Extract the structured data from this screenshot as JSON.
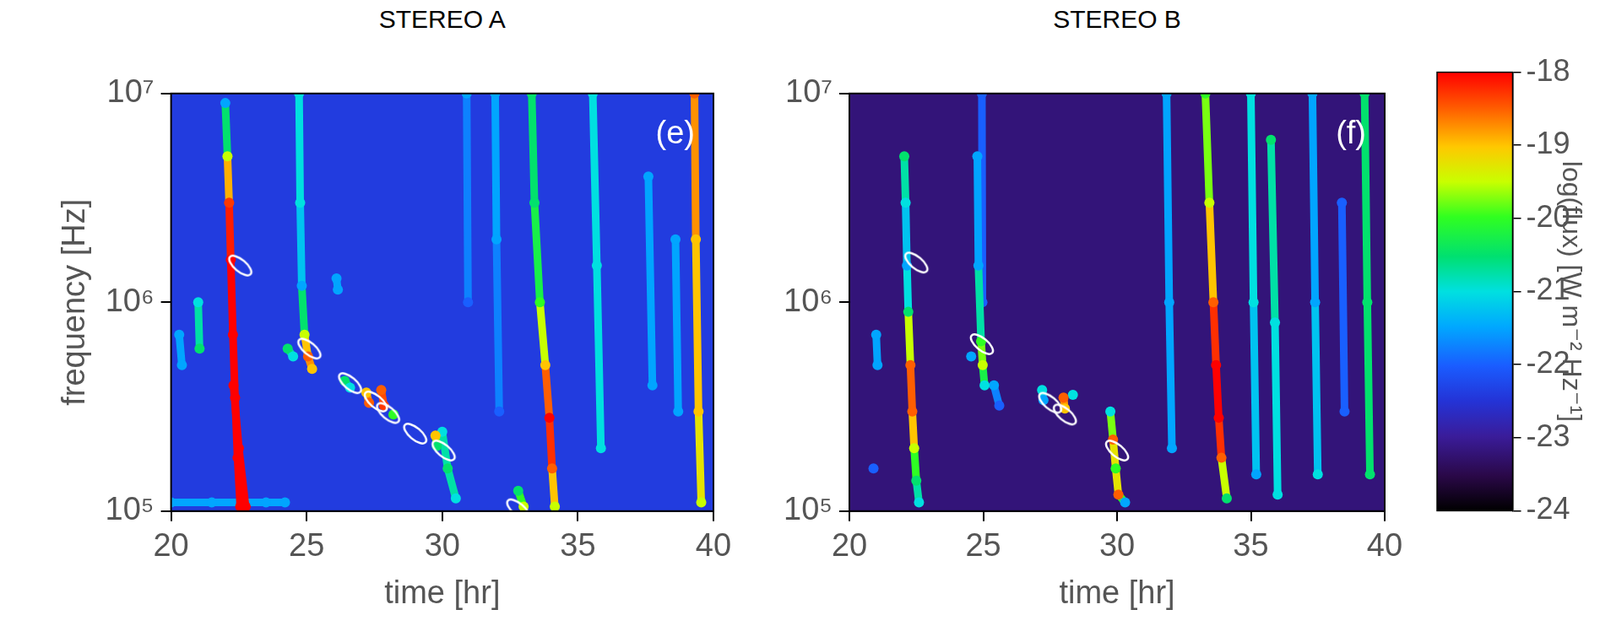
{
  "chart_data": [
    {
      "type": "heatmap",
      "title": "STEREO A",
      "panel_label": "(e)",
      "x_label": "time [hr]",
      "y_label": "frequency [Hz]",
      "xlim": [
        20,
        40
      ],
      "xticks": [
        20,
        25,
        30,
        35,
        40
      ],
      "ylim": [
        100000,
        10000000
      ],
      "yticks": [
        {
          "value": 100000,
          "label": "10⁵"
        },
        {
          "value": 1000000,
          "label": "10⁶"
        },
        {
          "value": 10000000,
          "label": "10⁷"
        }
      ],
      "log": "y",
      "grid": false,
      "background": -22.4,
      "bursts": [
        [
          [
            22.0,
            9000000.0,
            -21.5
          ],
          [
            22.08,
            5000000.0,
            -19.5
          ],
          [
            22.14,
            3000000.0,
            -18.3
          ],
          [
            22.2,
            1600000.0,
            -18
          ],
          [
            22.28,
            700000.0,
            -18
          ],
          [
            22.36,
            350000.0,
            -18
          ],
          [
            22.45,
            180000.0,
            -18
          ],
          [
            22.55,
            105000.0,
            -18
          ]
        ],
        [
          [
            22.3,
            400000.0,
            -18
          ],
          [
            22.5,
            200000.0,
            -18
          ],
          [
            22.75,
            105000.0,
            -18
          ]
        ],
        [
          [
            20.0,
            110000.0,
            -21.5
          ],
          [
            21.5,
            110000.0,
            -21.5
          ],
          [
            23.5,
            110000.0,
            -21.5
          ],
          [
            24.2,
            110000.0,
            -21.5
          ]
        ],
        [
          [
            24.72,
            10000000.0,
            -21
          ],
          [
            24.76,
            3000000.0,
            -21
          ],
          [
            24.82,
            1200000.0,
            -21.5
          ],
          [
            24.92,
            700000.0,
            -19.5
          ],
          [
            25.05,
            550000.0,
            -18.5
          ],
          [
            25.2,
            480000.0,
            -19
          ]
        ],
        [
          [
            24.3,
            600000.0,
            -20.5
          ],
          [
            24.5,
            550000.0,
            -21
          ]
        ],
        [
          [
            26.4,
            420000.0,
            -20.5
          ],
          [
            26.6,
            390000.0,
            -21
          ]
        ],
        [
          [
            27.2,
            370000.0,
            -19
          ],
          [
            27.3,
            330000.0,
            -18.5
          ]
        ],
        [
          [
            27.75,
            380000.0,
            -18.5
          ],
          [
            27.85,
            320000.0,
            -18.3
          ]
        ],
        [
          [
            28.2,
            290000.0,
            -20
          ]
        ],
        [
          [
            29.75,
            230000.0,
            -19
          ],
          [
            29.8,
            205000.0,
            -20.5
          ]
        ],
        [
          [
            30.0,
            240000.0,
            -21
          ],
          [
            30.2,
            160000.0,
            -20.5
          ],
          [
            30.5,
            115000.0,
            -21
          ]
        ],
        [
          [
            26.1,
            1300000.0,
            -21.5
          ],
          [
            26.15,
            1150000.0,
            -21.5
          ]
        ],
        [
          [
            32.8,
            125000.0,
            -20.5
          ],
          [
            33.0,
            105000.0,
            -19.5
          ]
        ],
        [
          [
            33.3,
            10000000.0,
            -20.5
          ],
          [
            33.4,
            3000000.0,
            -20.5
          ],
          [
            33.6,
            1000000.0,
            -20
          ],
          [
            33.8,
            500000.0,
            -19
          ],
          [
            33.95,
            280000.0,
            -18
          ],
          [
            34.05,
            160000.0,
            -18.5
          ],
          [
            34.15,
            105000.0,
            -19.5
          ]
        ],
        [
          [
            31.95,
            10000000.0,
            -21.5
          ],
          [
            32.0,
            2000000.0,
            -21.5
          ],
          [
            32.1,
            300000.0,
            -22
          ]
        ],
        [
          [
            30.9,
            10000000.0,
            -21.5
          ],
          [
            30.95,
            1000000.0,
            -22
          ]
        ],
        [
          [
            35.55,
            10000000.0,
            -21
          ],
          [
            35.7,
            1500000.0,
            -21
          ],
          [
            35.85,
            200000.0,
            -21
          ]
        ],
        [
          [
            37.6,
            4000000.0,
            -21.5
          ],
          [
            37.75,
            400000.0,
            -21.5
          ]
        ],
        [
          [
            38.6,
            2000000.0,
            -21.5
          ],
          [
            38.7,
            300000.0,
            -21.5
          ]
        ],
        [
          [
            39.3,
            10000000.0,
            -18.5
          ],
          [
            39.35,
            2000000.0,
            -19
          ],
          [
            39.45,
            300000.0,
            -19
          ],
          [
            39.55,
            110000.0,
            -19.5
          ]
        ],
        [
          [
            21.0,
            1000000.0,
            -21
          ],
          [
            21.05,
            600000.0,
            -20.5
          ]
        ],
        [
          [
            20.3,
            700000.0,
            -21.5
          ],
          [
            20.4,
            500000.0,
            -21.5
          ]
        ]
      ],
      "markers": {
        "marker": "ellipse",
        "color": "#ffffff",
        "points": [
          [
            22.55,
            1500000.0
          ],
          [
            25.1,
            600000.0
          ],
          [
            26.6,
            410000.0
          ],
          [
            27.55,
            335000.0
          ],
          [
            28.0,
            295000.0
          ],
          [
            29.0,
            235000.0
          ],
          [
            30.05,
            195000.0
          ],
          [
            32.8,
            102000.0
          ]
        ]
      }
    },
    {
      "type": "heatmap",
      "title": "STEREO B",
      "panel_label": "(f)",
      "x_label": "time [hr]",
      "xlim": [
        20,
        40
      ],
      "xticks": [
        20,
        25,
        30,
        35,
        40
      ],
      "ylim": [
        100000,
        10000000
      ],
      "yticks": [
        {
          "value": 100000,
          "label": "10⁵"
        },
        {
          "value": 1000000,
          "label": "10⁶"
        },
        {
          "value": 10000000,
          "label": "10⁷"
        }
      ],
      "log": "y",
      "grid": false,
      "background": -23.2,
      "bursts": [
        [
          [
            22.05,
            5000000.0,
            -20.5
          ],
          [
            22.1,
            3000000.0,
            -21
          ],
          [
            22.15,
            1500000.0,
            -21.5
          ],
          [
            22.2,
            900000.0,
            -20.5
          ],
          [
            22.28,
            500000.0,
            -18.5
          ],
          [
            22.35,
            300000.0,
            -18.5
          ],
          [
            22.42,
            200000.0,
            -19.5
          ],
          [
            22.5,
            140000.0,
            -20.5
          ],
          [
            22.6,
            110000.0,
            -21
          ]
        ],
        [
          [
            21.0,
            700000.0,
            -21.5
          ],
          [
            21.05,
            500000.0,
            -21.5
          ]
        ],
        [
          [
            20.9,
            160000.0,
            -22
          ]
        ],
        [
          [
            24.78,
            5000000.0,
            -21.5
          ],
          [
            24.82,
            1500000.0,
            -21.5
          ],
          [
            24.92,
            650000.0,
            -20
          ],
          [
            24.98,
            500000.0,
            -19.5
          ],
          [
            25.05,
            400000.0,
            -21
          ]
        ],
        [
          [
            24.55,
            550000.0,
            -21.5
          ]
        ],
        [
          [
            25.4,
            400000.0,
            -21.5
          ],
          [
            25.6,
            320000.0,
            -22
          ]
        ],
        [
          [
            27.2,
            380000.0,
            -21
          ],
          [
            27.25,
            340000.0,
            -21.5
          ]
        ],
        [
          [
            28.0,
            350000.0,
            -18.5
          ],
          [
            28.05,
            310000.0,
            -19
          ]
        ],
        [
          [
            28.35,
            360000.0,
            -21
          ]
        ],
        [
          [
            29.75,
            300000.0,
            -21
          ],
          [
            29.85,
            220000.0,
            -18.5
          ],
          [
            29.95,
            160000.0,
            -20
          ],
          [
            30.05,
            120000.0,
            -18.5
          ],
          [
            30.3,
            110000.0,
            -21.5
          ]
        ],
        [
          [
            33.3,
            10000000.0,
            -20
          ],
          [
            33.45,
            3000000.0,
            -19.5
          ],
          [
            33.6,
            1000000.0,
            -18.5
          ],
          [
            33.7,
            500000.0,
            -18
          ],
          [
            33.8,
            280000.0,
            -18
          ],
          [
            33.9,
            180000.0,
            -18.5
          ],
          [
            34.1,
            115000.0,
            -20.5
          ]
        ],
        [
          [
            31.85,
            10000000.0,
            -21.5
          ],
          [
            31.95,
            1000000.0,
            -21.5
          ],
          [
            32.05,
            200000.0,
            -21.5
          ]
        ],
        [
          [
            35.0,
            10000000.0,
            -21
          ],
          [
            35.1,
            1000000.0,
            -21
          ],
          [
            35.2,
            150000.0,
            -21.5
          ]
        ],
        [
          [
            35.75,
            6000000.0,
            -20.5
          ],
          [
            35.9,
            800000.0,
            -21
          ],
          [
            36.0,
            120000.0,
            -21
          ]
        ],
        [
          [
            37.3,
            10000000.0,
            -21.5
          ],
          [
            37.4,
            1000000.0,
            -21.5
          ],
          [
            37.5,
            150000.0,
            -21
          ]
        ],
        [
          [
            38.4,
            3000000.0,
            -22
          ],
          [
            38.5,
            300000.0,
            -22
          ]
        ],
        [
          [
            39.25,
            10000000.0,
            -20.5
          ],
          [
            39.35,
            1000000.0,
            -20.5
          ],
          [
            39.45,
            150000.0,
            -20.5
          ]
        ],
        [
          [
            24.95,
            10000000.0,
            -22
          ],
          [
            24.97,
            1000000.0,
            -22
          ]
        ]
      ],
      "markers": {
        "marker": "ellipse",
        "color": "#ffffff",
        "points": [
          [
            22.5,
            1550000.0
          ],
          [
            24.95,
            630000.0
          ],
          [
            27.5,
            330000.0
          ],
          [
            28.05,
            290000.0
          ],
          [
            30.0,
            195000.0
          ]
        ]
      }
    }
  ],
  "colorbar": {
    "label": "log(flux) [W m⁻² Hz⁻¹]",
    "range": [
      -24,
      -18
    ],
    "ticks": [
      -18,
      -19,
      -20,
      -21,
      -22,
      -23,
      -24
    ]
  }
}
